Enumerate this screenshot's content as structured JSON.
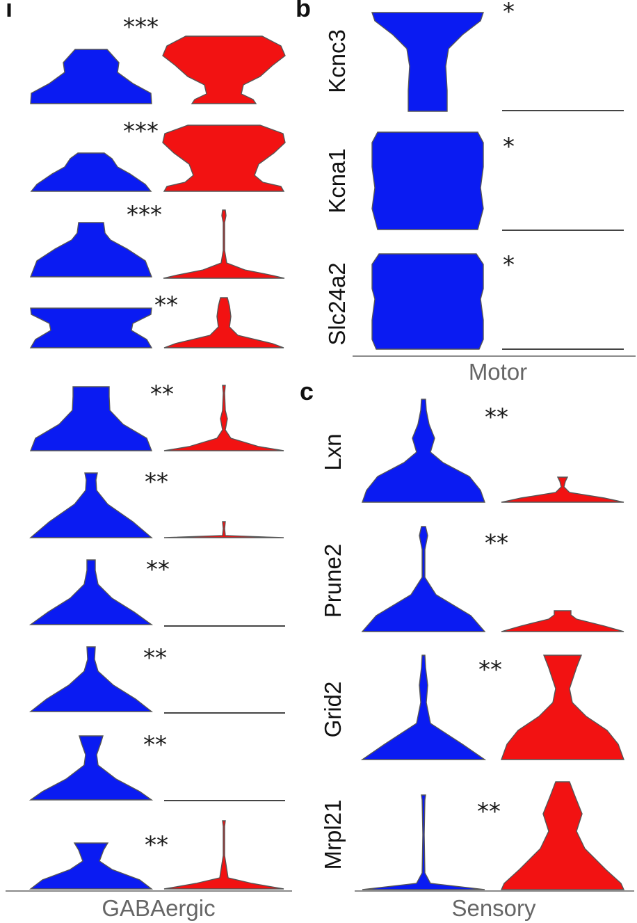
{
  "colors": {
    "group1": "#0a1bf2",
    "group2": "#f21212"
  },
  "chart_data": [
    {
      "type": "violin",
      "panel": "a",
      "panel_label": "ı",
      "xlabel": "GABAergic",
      "genes": [
        {
          "label": "",
          "significance": "***",
          "shape_g1": "plateau",
          "shape_g2": "bowl",
          "g2_level": "high"
        },
        {
          "label": "",
          "significance": "***",
          "shape_g1": "plateau",
          "shape_g2": "bowl",
          "g2_level": "high"
        },
        {
          "label": "",
          "significance": "***",
          "shape_g1": "plateau",
          "shape_g2": "spike",
          "g2_level": "low"
        },
        {
          "label": "",
          "significance": "**",
          "shape_g1": "block",
          "shape_g2": "tower",
          "g2_level": "medium"
        },
        {
          "label": "",
          "significance": "**",
          "shape_g1": "plateau",
          "shape_g2": "spike",
          "g2_level": "low"
        },
        {
          "label": "",
          "significance": "**",
          "shape_g1": "bulb",
          "shape_g2": "spike",
          "g2_level": "very low"
        },
        {
          "label": "",
          "significance": "**",
          "shape_g1": "stalk",
          "shape_g2": "flat",
          "g2_level": "none"
        },
        {
          "label": "",
          "significance": "**",
          "shape_g1": "stalk",
          "shape_g2": "flat",
          "g2_level": "none"
        },
        {
          "label": "",
          "significance": "**",
          "shape_g1": "funnel",
          "shape_g2": "flat",
          "g2_level": "none"
        },
        {
          "label": "",
          "significance": "**",
          "shape_g1": "bulb",
          "shape_g2": "spike",
          "g2_level": "low"
        }
      ]
    },
    {
      "type": "violin",
      "panel": "b",
      "panel_label": "b",
      "xlabel": "Motor",
      "genes": [
        {
          "label": "Kcnc3",
          "significance": "*",
          "shape_g1": "funnel",
          "shape_g2": "flat",
          "g2_level": "none"
        },
        {
          "label": "Kcna1",
          "significance": "*",
          "shape_g1": "block",
          "shape_g2": "flat",
          "g2_level": "none"
        },
        {
          "label": "Slc24a2",
          "significance": "*",
          "shape_g1": "block",
          "shape_g2": "flat",
          "g2_level": "none"
        }
      ]
    },
    {
      "type": "violin",
      "panel": "c",
      "panel_label": "c",
      "xlabel": "Sensory",
      "genes": [
        {
          "label": "Lxn",
          "significance": "**",
          "shape_g1": "tall",
          "shape_g2": "spike",
          "g2_level": "low"
        },
        {
          "label": "Prune2",
          "significance": "**",
          "shape_g1": "spike",
          "shape_g2": "spike",
          "g2_level": "low"
        },
        {
          "label": "Grid2",
          "significance": "**",
          "shape_g1": "spike",
          "shape_g2": "tall",
          "g2_level": "high"
        },
        {
          "label": "Mrpl21",
          "significance": "**",
          "shape_g1": "spike",
          "shape_g2": "tall",
          "g2_level": "high"
        }
      ]
    }
  ]
}
